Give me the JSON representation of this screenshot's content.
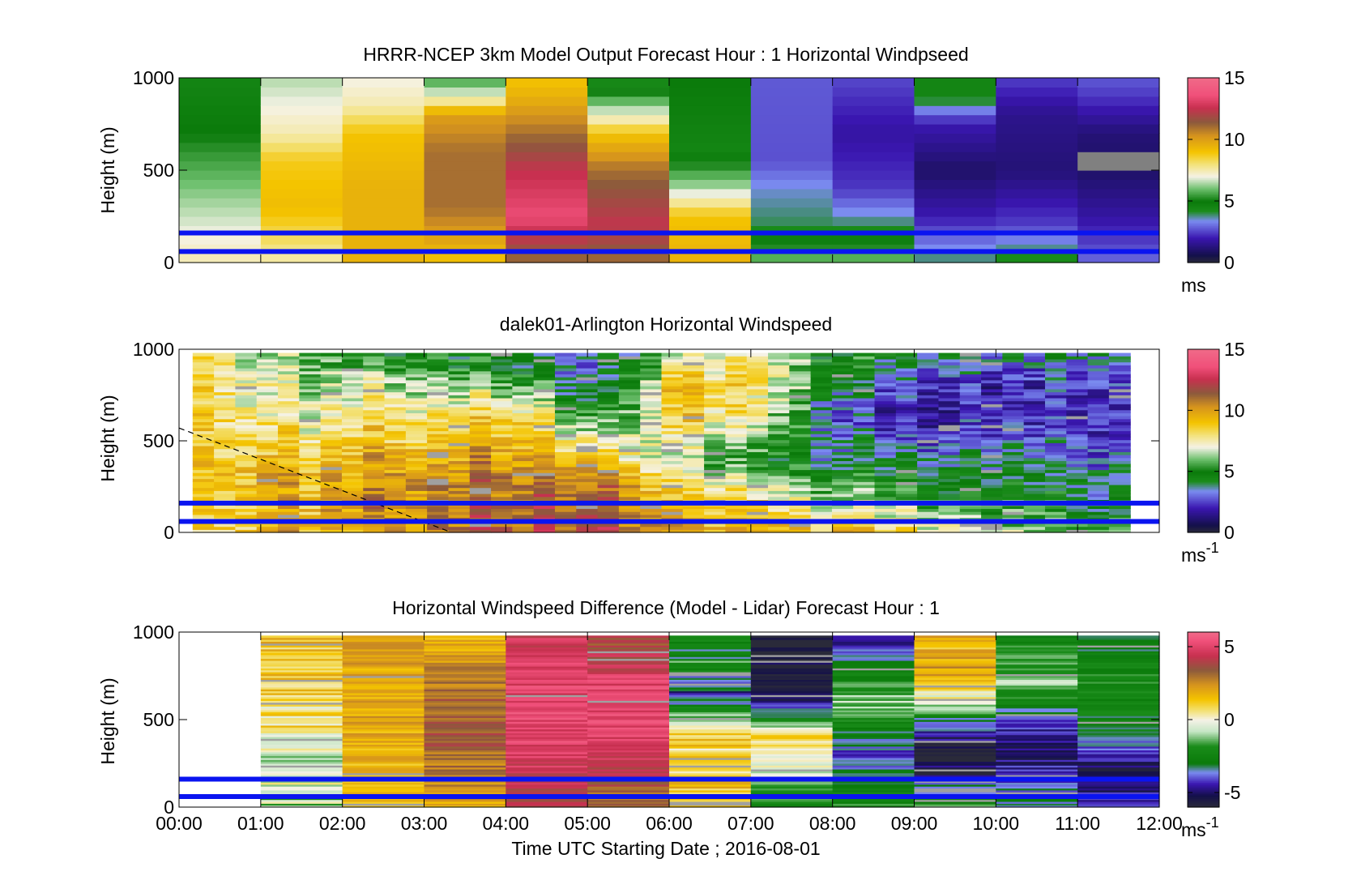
{
  "figure": {
    "xlabel": "Time UTC  Starting Date ; 2016-08-01"
  },
  "chart_data": [
    {
      "type": "heatmap",
      "id": "model",
      "title": "HRRR-NCEP 3km Model Output   Forecast Hour : 1 Horizontal Windpseed",
      "ylabel": "Height (m)",
      "ylim": [
        0,
        1000
      ],
      "yticks": [
        "0",
        "500",
        "1000"
      ],
      "x_ticks": [
        "00:00",
        "01:00",
        "02:00",
        "03:00",
        "04:00",
        "05:00",
        "06:00",
        "07:00",
        "08:00",
        "09:00",
        "10:00",
        "11:00",
        "12:00"
      ],
      "x_tick_labels_shown": false,
      "reference_lines_m": [
        60,
        160
      ],
      "colorbar": {
        "unit": "ms",
        "unit_sup": "",
        "range": [
          0,
          15
        ],
        "ticks": [
          "0",
          "5",
          "10",
          "15"
        ],
        "tick_values": [
          0,
          5,
          10,
          15
        ],
        "colormap": "speed"
      },
      "columns": 12,
      "rows": 20,
      "profiles": [
        [
          [
            0,
            7.5
          ],
          [
            300,
            6.5
          ],
          [
            700,
            5
          ],
          [
            1000,
            4.5
          ]
        ],
        [
          [
            0,
            7.5
          ],
          [
            300,
            9.2
          ],
          [
            550,
            8.8
          ],
          [
            700,
            7.5
          ],
          [
            1000,
            6.5
          ]
        ],
        [
          [
            0,
            9.5
          ],
          [
            400,
            9.5
          ],
          [
            700,
            9
          ],
          [
            850,
            7.5
          ],
          [
            1000,
            7
          ]
        ],
        [
          [
            0,
            9
          ],
          [
            300,
            11
          ],
          [
            600,
            11
          ],
          [
            800,
            10
          ],
          [
            900,
            7
          ],
          [
            1000,
            5.5
          ]
        ],
        [
          [
            0,
            11
          ],
          [
            250,
            13.5
          ],
          [
            500,
            12.5
          ],
          [
            700,
            11
          ],
          [
            900,
            9.5
          ],
          [
            1000,
            9
          ]
        ],
        [
          [
            0,
            11
          ],
          [
            200,
            12.5
          ],
          [
            500,
            11
          ],
          [
            700,
            9
          ],
          [
            800,
            7
          ],
          [
            1000,
            4
          ]
        ],
        [
          [
            0,
            9.5
          ],
          [
            250,
            9
          ],
          [
            400,
            6.5
          ],
          [
            600,
            4.5
          ],
          [
            1000,
            5
          ]
        ],
        [
          [
            0,
            6
          ],
          [
            200,
            4
          ],
          [
            400,
            3.5
          ],
          [
            550,
            2.7
          ],
          [
            1000,
            2.8
          ]
        ],
        [
          [
            0,
            6
          ],
          [
            200,
            4
          ],
          [
            400,
            2.4
          ],
          [
            700,
            1.8
          ],
          [
            1000,
            2.6
          ]
        ],
        [
          [
            0,
            4
          ],
          [
            250,
            2
          ],
          [
            500,
            1
          ],
          [
            750,
            2
          ],
          [
            900,
            4.5
          ],
          [
            1000,
            4.5
          ]
        ],
        [
          [
            0,
            4.5
          ],
          [
            200,
            2.5
          ],
          [
            500,
            1.2
          ],
          [
            800,
            1.5
          ],
          [
            1000,
            2.5
          ]
        ],
        [
          [
            0,
            3
          ],
          [
            250,
            1.8
          ],
          [
            500,
            1
          ],
          [
            700,
            1.2
          ],
          [
            900,
            2.4
          ],
          [
            1000,
            2.8
          ]
        ]
      ],
      "missing_cells": [
        {
          "column": 11,
          "height_range_m": [
            500,
            600
          ]
        }
      ]
    },
    {
      "type": "heatmap",
      "id": "lidar",
      "title": "dalek01-Arlington  Horizontal Windspeed",
      "ylabel": "Height (m)",
      "ylim": [
        0,
        1000
      ],
      "yticks": [
        "0",
        "500",
        "1000"
      ],
      "x_ticks": [
        "00:00",
        "01:00",
        "02:00",
        "03:00",
        "04:00",
        "05:00",
        "06:00",
        "07:00",
        "08:00",
        "09:00",
        "10:00",
        "11:00",
        "12:00"
      ],
      "x_tick_labels_shown": false,
      "reference_lines_m": [
        60,
        160
      ],
      "colorbar": {
        "unit": "ms",
        "unit_sup": "-1",
        "range": [
          0,
          15
        ],
        "ticks": [
          "0",
          "5",
          "10",
          "15"
        ],
        "tick_values": [
          0,
          5,
          10,
          15
        ],
        "colormap": "speed"
      },
      "columns": 46,
      "rows": 60,
      "data_top_m": 980,
      "profiles_by_hour": [
        [
          0,
          [
            [
              0,
              8
            ],
            [
              300,
              8.5
            ],
            [
              600,
              8.5
            ],
            [
              900,
              8.5
            ],
            [
              1000,
              8
            ]
          ]
        ],
        [
          1,
          [
            [
              0,
              9
            ],
            [
              300,
              9.5
            ],
            [
              600,
              7.5
            ],
            [
              900,
              6.5
            ],
            [
              1000,
              6
            ]
          ]
        ],
        [
          2,
          [
            [
              0,
              10
            ],
            [
              300,
              10
            ],
            [
              600,
              8
            ],
            [
              900,
              6
            ],
            [
              1000,
              5
            ]
          ]
        ],
        [
          3,
          [
            [
              0,
              11
            ],
            [
              300,
              10.5
            ],
            [
              600,
              8.5
            ],
            [
              900,
              5.5
            ],
            [
              1000,
              5
            ]
          ]
        ],
        [
          4,
          [
            [
              0,
              11.5
            ],
            [
              300,
              11
            ],
            [
              600,
              9
            ],
            [
              800,
              6
            ],
            [
              1000,
              4
            ]
          ]
        ],
        [
          5,
          [
            [
              0,
              11.5
            ],
            [
              200,
              11.5
            ],
            [
              400,
              9
            ],
            [
              600,
              5
            ],
            [
              800,
              3
            ],
            [
              1000,
              2.5
            ]
          ]
        ],
        [
          6,
          [
            [
              0,
              10
            ],
            [
              250,
              8
            ],
            [
              400,
              6
            ],
            [
              600,
              8.5
            ],
            [
              800,
              9.5
            ],
            [
              1000,
              7
            ]
          ]
        ],
        [
          7,
          [
            [
              0,
              9.5
            ],
            [
              200,
              8
            ],
            [
              400,
              5
            ],
            [
              600,
              7
            ],
            [
              800,
              8
            ],
            [
              1000,
              7
            ]
          ]
        ],
        [
          8,
          [
            [
              0,
              9.5
            ],
            [
              200,
              6
            ],
            [
              400,
              4
            ],
            [
              600,
              2.5
            ],
            [
              800,
              4
            ],
            [
              1000,
              5
            ]
          ]
        ],
        [
          9,
          [
            [
              0,
              8
            ],
            [
              200,
              5.5
            ],
            [
              400,
              4
            ],
            [
              600,
              2
            ],
            [
              800,
              2.5
            ],
            [
              1000,
              5
            ]
          ]
        ],
        [
          10,
          [
            [
              0,
              6.5
            ],
            [
              200,
              5
            ],
            [
              400,
              4
            ],
            [
              600,
              2.5
            ],
            [
              800,
              2
            ],
            [
              1000,
              4
            ]
          ]
        ],
        [
          11,
          [
            [
              0,
              6
            ],
            [
              200,
              4.5
            ],
            [
              400,
              3.5
            ],
            [
              600,
              2.5
            ],
            [
              800,
              3
            ],
            [
              1000,
              4.5
            ]
          ]
        ],
        [
          12,
          [
            [
              0,
              6
            ],
            [
              200,
              4.5
            ],
            [
              400,
              3.5
            ],
            [
              600,
              2.5
            ],
            [
              800,
              3
            ],
            [
              1000,
              4.5
            ]
          ]
        ]
      ],
      "columns_shifted_10_min": true,
      "dashed_line": {
        "from": [
          "00:00",
          570
        ],
        "to": [
          "03:20",
          0
        ]
      }
    },
    {
      "type": "heatmap",
      "id": "difference",
      "title": "Horizontal Windspeed Difference (Model - Lidar) Forecast Hour : 1",
      "ylabel": "Height (m)",
      "ylim": [
        0,
        1000
      ],
      "yticks": [
        "0",
        "500",
        "1000"
      ],
      "x_ticks": [
        "00:00",
        "01:00",
        "02:00",
        "03:00",
        "04:00",
        "05:00",
        "06:00",
        "07:00",
        "08:00",
        "09:00",
        "10:00",
        "11:00",
        "12:00"
      ],
      "x_tick_labels_shown": true,
      "reference_lines_m": [
        60,
        160
      ],
      "colorbar": {
        "unit": "ms",
        "unit_sup": "-1",
        "range": [
          -6,
          6
        ],
        "ticks": [
          "-5",
          "0",
          "5"
        ],
        "tick_values": [
          -5,
          0,
          5
        ],
        "colormap": "diff"
      },
      "columns": 12,
      "rows": 90,
      "data_top_m": 980,
      "blank_columns": [
        0
      ],
      "profiles": [
        null,
        [
          [
            0,
            -1
          ],
          [
            300,
            -0.5
          ],
          [
            500,
            0.5
          ],
          [
            700,
            1
          ],
          [
            980,
            1.5
          ]
        ],
        [
          [
            0,
            1.5
          ],
          [
            500,
            2
          ],
          [
            980,
            2
          ]
        ],
        [
          [
            0,
            2
          ],
          [
            400,
            3.5
          ],
          [
            700,
            3
          ],
          [
            980,
            1.5
          ]
        ],
        [
          [
            0,
            4
          ],
          [
            400,
            5
          ],
          [
            700,
            5
          ],
          [
            980,
            4.5
          ]
        ],
        [
          [
            0,
            3
          ],
          [
            400,
            5
          ],
          [
            700,
            5
          ],
          [
            980,
            3.5
          ]
        ],
        [
          [
            0,
            1.5
          ],
          [
            400,
            1
          ],
          [
            650,
            -4
          ],
          [
            800,
            -2.5
          ],
          [
            980,
            -2
          ]
        ],
        [
          [
            0,
            -2.5
          ],
          [
            200,
            -0.5
          ],
          [
            400,
            1
          ],
          [
            600,
            -5
          ],
          [
            800,
            -5.5
          ],
          [
            980,
            -6
          ]
        ],
        [
          [
            0,
            -2
          ],
          [
            300,
            -4
          ],
          [
            600,
            -1
          ],
          [
            800,
            -3
          ],
          [
            980,
            -5
          ]
        ],
        [
          [
            0,
            -2
          ],
          [
            300,
            -6
          ],
          [
            500,
            -3
          ],
          [
            700,
            1
          ],
          [
            850,
            2
          ],
          [
            980,
            1.5
          ]
        ],
        [
          [
            0,
            -3
          ],
          [
            300,
            -5
          ],
          [
            500,
            -4
          ],
          [
            700,
            -1
          ],
          [
            980,
            -2.5
          ]
        ],
        [
          [
            0,
            -4
          ],
          [
            200,
            -5.5
          ],
          [
            400,
            -3
          ],
          [
            700,
            -2
          ],
          [
            980,
            -3
          ]
        ]
      ],
      "noise_columns": [
        1,
        6,
        9
      ]
    }
  ]
}
